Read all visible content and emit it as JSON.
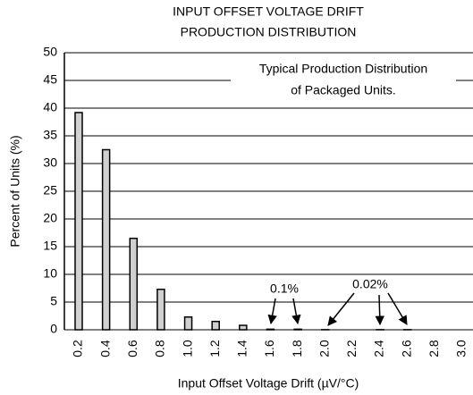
{
  "chart_data": {
    "type": "bar",
    "title": [
      "INPUT OFFSET VOLTAGE DRIFT",
      "PRODUCTION DISTRIBUTION"
    ],
    "xlabel": "Input Offset Voltage Drift (µV/°C)",
    "ylabel": "Percent of Units (%)",
    "annotations": [
      "Typical Production Distribution",
      "of Packaged Units.",
      "0.1%",
      "0.02%"
    ],
    "categories": [
      "0.2",
      "0.4",
      "0.6",
      "0.8",
      "1.0",
      "1.2",
      "1.4",
      "1.6",
      "1.8",
      "2.0",
      "2.2",
      "2.4",
      "2.6",
      "2.8",
      "3.0"
    ],
    "values": [
      39.2,
      32.5,
      16.5,
      7.3,
      2.3,
      1.5,
      0.8,
      0.1,
      0.1,
      0.02,
      0,
      0.02,
      0.02,
      0,
      0
    ],
    "color": "#d0d0d0",
    "ylim": [
      0,
      50
    ],
    "yticks": [
      0,
      5,
      10,
      15,
      20,
      25,
      30,
      35,
      40,
      45,
      50
    ],
    "grid": true
  }
}
